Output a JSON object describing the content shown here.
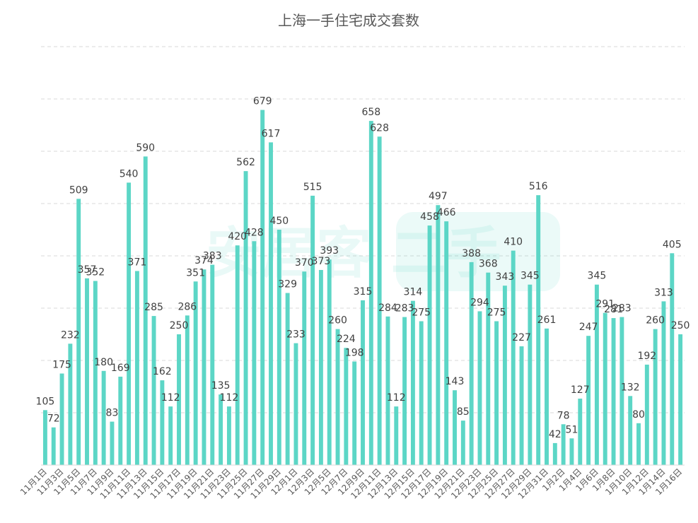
{
  "chart_data": {
    "type": "bar",
    "title": "上海一手住宅成交套数",
    "watermark": "安居客 二手",
    "bar_color": "#5cd6c6",
    "grid": true,
    "ylim": [
      0,
      800
    ],
    "categories": [
      "11月1日",
      "11月2日",
      "11月3日",
      "11月4日",
      "11月5日",
      "11月6日",
      "11月7日",
      "11月8日",
      "11月9日",
      "11月10日",
      "11月11日",
      "11月12日",
      "11月13日",
      "11月14日",
      "11月15日",
      "11月16日",
      "11月17日",
      "11月18日",
      "11月19日",
      "11月20日",
      "11月21日",
      "11月22日",
      "11月23日",
      "11月24日",
      "11月25日",
      "11月26日",
      "11月27日",
      "11月28日",
      "11月29日",
      "11月30日",
      "12月1日",
      "12月2日",
      "12月3日",
      "12月4日",
      "12月5日",
      "12月6日",
      "12月7日",
      "12月8日",
      "12月9日",
      "12月10日",
      "12月11日",
      "12月12日",
      "12月13日",
      "12月14日",
      "12月15日",
      "12月16日",
      "12月17日",
      "12月18日",
      "12月19日",
      "12月20日",
      "12月21日",
      "12月22日",
      "12月23日",
      "12月24日",
      "12月25日",
      "12月26日",
      "12月27日",
      "12月28日",
      "12月29日",
      "12月30日",
      "12月31日",
      "1月1日",
      "1月2日",
      "1月3日",
      "1月4日",
      "1月5日",
      "1月6日",
      "1月7日",
      "1月8日",
      "1月9日",
      "1月10日",
      "1月11日",
      "1月12日",
      "1月13日",
      "1月14日",
      "1月15日",
      "1月16日"
    ],
    "values": [
      105,
      72,
      175,
      232,
      509,
      357,
      352,
      180,
      83,
      169,
      540,
      371,
      590,
      285,
      162,
      112,
      250,
      286,
      351,
      374,
      383,
      135,
      112,
      420,
      562,
      428,
      679,
      617,
      450,
      329,
      233,
      370,
      515,
      373,
      393,
      260,
      224,
      198,
      315,
      658,
      628,
      284,
      112,
      283,
      314,
      275,
      458,
      497,
      466,
      143,
      85,
      388,
      294,
      368,
      275,
      343,
      410,
      227,
      345,
      516,
      261,
      42,
      78,
      51,
      127,
      247,
      345,
      291,
      281,
      283,
      132,
      80,
      192,
      260,
      313,
      405,
      250
    ],
    "value_labels": [
      "105",
      "72",
      "175",
      "232",
      "509",
      "357",
      "352",
      "180",
      "83",
      "169",
      "540",
      "371",
      "590",
      "285",
      "162",
      "112",
      "250",
      "286",
      "351",
      "374",
      "383",
      "135",
      "112",
      "420",
      "562",
      "428",
      "679",
      "617",
      "450",
      "329",
      "233",
      "370",
      "515",
      "373",
      "393",
      "260",
      "224",
      "198",
      "315",
      "658",
      "628",
      "284",
      "112",
      "283",
      "314",
      "275",
      "458",
      "497",
      "466",
      "143",
      "85",
      "388",
      "294",
      "368",
      "275",
      "343",
      "410",
      "227",
      "345",
      "516",
      "261",
      "42",
      "78",
      "51",
      "127",
      "247",
      "345",
      "291",
      "281",
      "283",
      "132",
      "80",
      "192",
      "260",
      "313",
      "405",
      "250"
    ]
  }
}
